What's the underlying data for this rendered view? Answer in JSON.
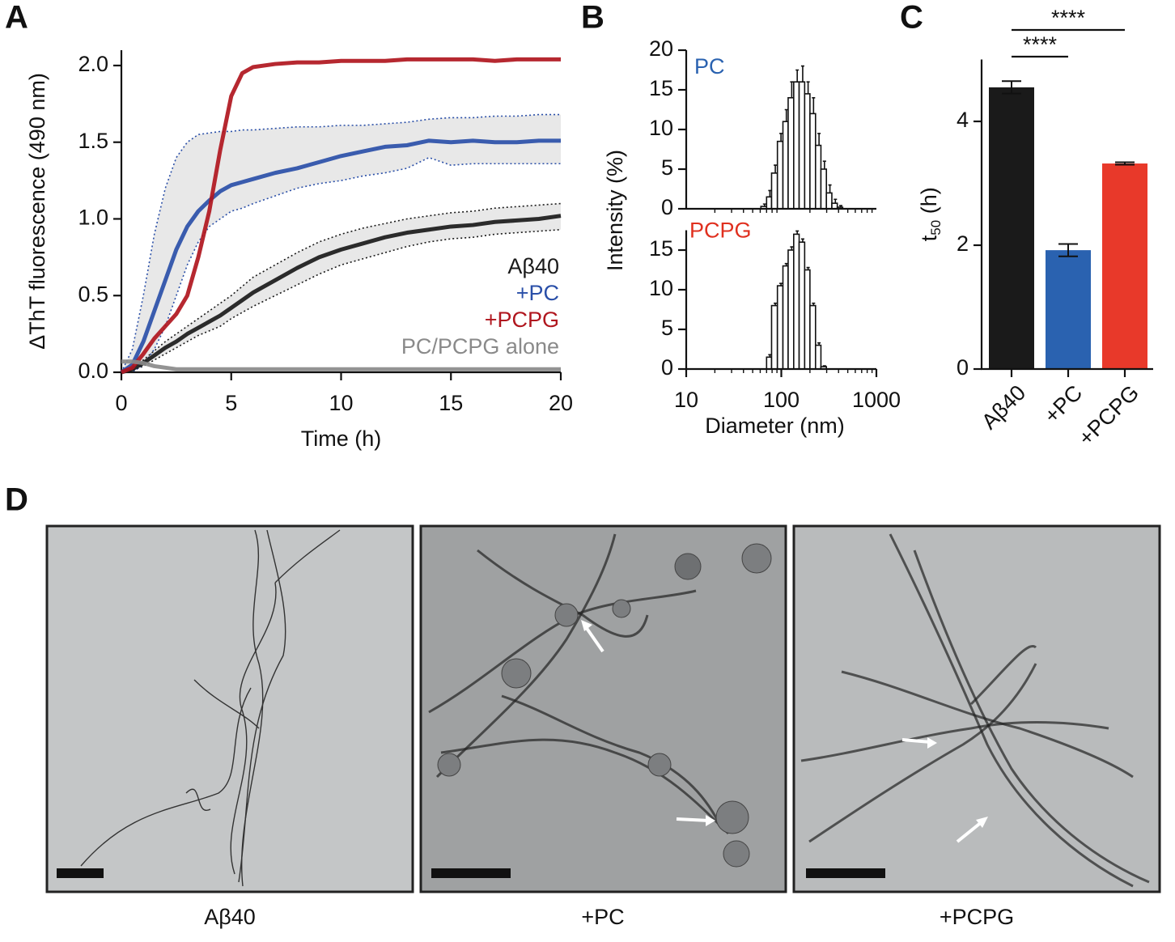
{
  "panel_labels": [
    "A",
    "B",
    "C",
    "D"
  ],
  "chart_data": [
    {
      "type": "line",
      "xlabel": "Time (h)",
      "ylabel": "ΔThT fluorescence (490 nm)",
      "x": [
        0,
        0.5,
        1,
        1.5,
        2,
        2.5,
        3,
        3.5,
        4,
        4.5,
        5,
        5.5,
        6,
        7,
        8,
        9,
        10,
        11,
        12,
        13,
        14,
        15,
        16,
        17,
        18,
        19,
        20
      ],
      "xlim": [
        0,
        20
      ],
      "xticks": [
        0,
        5,
        10,
        15,
        20
      ],
      "ylim": [
        0,
        2.1
      ],
      "yticks": [
        {
          "value": 0,
          "label": "0.0"
        },
        {
          "value": 0.5,
          "label": "0.5"
        },
        {
          "value": 1,
          "label": "1.0"
        },
        {
          "value": 1.5,
          "label": "1.5"
        },
        {
          "value": 2,
          "label": "2.0"
        }
      ],
      "legend": "lower right",
      "series": [
        {
          "name": "Aβ40",
          "color": "#1a1a1a",
          "values": [
            0,
            0.02,
            0.06,
            0.11,
            0.16,
            0.2,
            0.25,
            0.29,
            0.33,
            0.37,
            0.42,
            0.47,
            0.52,
            0.6,
            0.68,
            0.75,
            0.8,
            0.84,
            0.88,
            0.91,
            0.93,
            0.95,
            0.96,
            0.98,
            0.99,
            1.0,
            1.02
          ],
          "band": {
            "upper": [
              0,
              0.03,
              0.08,
              0.14,
              0.2,
              0.25,
              0.3,
              0.35,
              0.4,
              0.45,
              0.5,
              0.56,
              0.62,
              0.7,
              0.78,
              0.85,
              0.9,
              0.94,
              0.97,
              1.0,
              1.02,
              1.04,
              1.05,
              1.07,
              1.08,
              1.09,
              1.1
            ],
            "lower": [
              0,
              0.01,
              0.04,
              0.08,
              0.12,
              0.16,
              0.2,
              0.24,
              0.27,
              0.3,
              0.35,
              0.39,
              0.43,
              0.5,
              0.57,
              0.64,
              0.7,
              0.74,
              0.78,
              0.82,
              0.85,
              0.87,
              0.88,
              0.9,
              0.91,
              0.92,
              0.93
            ]
          }
        },
        {
          "name": "+PC",
          "color": "#2a4fa8",
          "values": [
            0,
            0.05,
            0.2,
            0.4,
            0.6,
            0.8,
            0.95,
            1.05,
            1.12,
            1.18,
            1.22,
            1.24,
            1.26,
            1.3,
            1.33,
            1.37,
            1.41,
            1.44,
            1.47,
            1.48,
            1.51,
            1.5,
            1.51,
            1.5,
            1.5,
            1.51,
            1.51
          ],
          "band": {
            "upper": [
              0,
              0.15,
              0.5,
              0.9,
              1.2,
              1.4,
              1.5,
              1.55,
              1.56,
              1.57,
              1.57,
              1.58,
              1.58,
              1.59,
              1.6,
              1.6,
              1.61,
              1.61,
              1.62,
              1.63,
              1.65,
              1.66,
              1.66,
              1.67,
              1.67,
              1.68,
              1.68
            ],
            "lower": [
              0,
              0,
              0.05,
              0.15,
              0.3,
              0.5,
              0.7,
              0.85,
              0.95,
              1.0,
              1.05,
              1.07,
              1.1,
              1.15,
              1.2,
              1.23,
              1.25,
              1.28,
              1.3,
              1.33,
              1.4,
              1.35,
              1.36,
              1.36,
              1.36,
              1.36,
              1.36
            ]
          }
        },
        {
          "name": "+PCPG",
          "color": "#b0161e",
          "values": [
            0,
            0.03,
            0.12,
            0.22,
            0.3,
            0.38,
            0.5,
            0.75,
            1.05,
            1.45,
            1.8,
            1.95,
            1.99,
            2.01,
            2.02,
            2.02,
            2.03,
            2.03,
            2.03,
            2.04,
            2.04,
            2.04,
            2.04,
            2.03,
            2.04,
            2.04,
            2.04
          ]
        },
        {
          "name": "PC/PCPG alone",
          "color": "#8a8a8a",
          "values": [
            0.07,
            0.07,
            0.06,
            0.04,
            0.03,
            0.02,
            0.02,
            0.02,
            0.02,
            0.02,
            0.02,
            0.02,
            0.02,
            0.02,
            0.02,
            0.02,
            0.02,
            0.02,
            0.02,
            0.02,
            0.02,
            0.02,
            0.02,
            0.02,
            0.02,
            0.02,
            0.02
          ]
        }
      ]
    },
    {
      "type": "histogram",
      "label": "PC",
      "color": "#2a62b0",
      "ylabel": "Intensity (%)",
      "xlog": true,
      "xlim": [
        10,
        1000
      ],
      "ylim": [
        0,
        20
      ],
      "yticks": [
        0,
        5,
        10,
        15,
        20
      ],
      "bins": [
        61,
        70,
        79,
        91,
        104,
        118,
        135,
        154,
        176,
        200,
        229,
        261,
        298,
        340,
        388,
        442
      ],
      "values": [
        0.3,
        1.5,
        4.5,
        8.5,
        11,
        14,
        16,
        16,
        14.5,
        12,
        8,
        5,
        2,
        0.7,
        0.2
      ],
      "errors": [
        0.3,
        0.8,
        1,
        1,
        1.5,
        2,
        1.5,
        2,
        1.5,
        2,
        1.5,
        1,
        1,
        0.5,
        0.2
      ]
    },
    {
      "type": "histogram",
      "label": "PCPG",
      "color": "#e0301f",
      "xlabel": "Diameter (nm)",
      "xlog": true,
      "xlim": [
        10,
        1000
      ],
      "xticks": [
        10,
        100,
        1000
      ],
      "ylim": [
        0,
        17.5
      ],
      "yticks": [
        0,
        5,
        10,
        15
      ],
      "bins": [
        70,
        79,
        91,
        104,
        118,
        135,
        154,
        176,
        200,
        229,
        261,
        298
      ],
      "values": [
        1.5,
        8,
        10.5,
        13,
        15,
        17,
        16,
        12.5,
        8,
        3,
        0.3
      ],
      "errors": [
        0.3,
        0.3,
        0.3,
        0.3,
        0.4,
        0.4,
        0.4,
        0.3,
        0.3,
        0.3,
        0.1
      ]
    },
    {
      "type": "bar",
      "ylabel_parts": [
        "t",
        "50",
        " (h)"
      ],
      "categories": [
        "Aβ40",
        "+PC",
        "+PCPG"
      ],
      "values": [
        4.55,
        1.92,
        3.32
      ],
      "errors": [
        0.1,
        0.1,
        0.02
      ],
      "colors": [
        "#1a1a1a",
        "#2a62b0",
        "#e8392a"
      ],
      "ylim": [
        0,
        5
      ],
      "yticks": [
        0,
        2,
        4
      ],
      "significance": [
        {
          "text": "****",
          "pair": [
            "Aβ40",
            "+PC"
          ]
        },
        {
          "text": "****",
          "pair": [
            "Aβ40",
            "+PCPG"
          ]
        }
      ]
    }
  ],
  "images": {
    "labels": [
      "Aβ40",
      "+PC",
      "+PCPG"
    ]
  }
}
